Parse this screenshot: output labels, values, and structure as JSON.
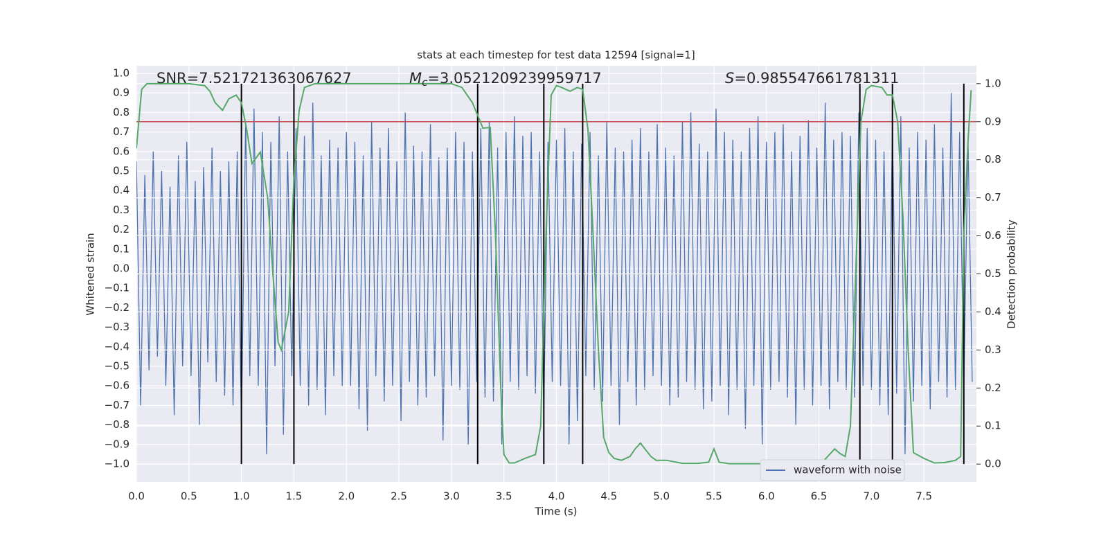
{
  "chart_data": {
    "type": "line",
    "title": "stats at each timestep for test data 12594 [signal=1]",
    "x_label": "Time (s)",
    "y_label": "Whitened strain",
    "y2_label": "Detection probability",
    "annotations": [
      {
        "text": "SNR=7.521721363067627"
      },
      {
        "symbol": "M",
        "subscript": "c",
        "text": "=3.0521209239959717"
      },
      {
        "symbol": "S",
        "text": "=0.985547661781311"
      }
    ],
    "xlim": [
      0,
      8.0
    ],
    "ylim": [
      -1.092,
      1.039
    ],
    "y2lim": [
      -0.047,
      1.047
    ],
    "xticks": [
      {
        "value": 0,
        "label": "0.0"
      },
      {
        "value": 0.5,
        "label": "0.5"
      },
      {
        "value": 1,
        "label": "1.0"
      },
      {
        "value": 1.5,
        "label": "1.5"
      },
      {
        "value": 2,
        "label": "2.0"
      },
      {
        "value": 2.5,
        "label": "2.5"
      },
      {
        "value": 3,
        "label": "3.0"
      },
      {
        "value": 3.5,
        "label": "3.5"
      },
      {
        "value": 4,
        "label": "4.0"
      },
      {
        "value": 4.5,
        "label": "4.5"
      },
      {
        "value": 5,
        "label": "5.0"
      },
      {
        "value": 5.5,
        "label": "5.5"
      },
      {
        "value": 6,
        "label": "6.0"
      },
      {
        "value": 6.5,
        "label": "6.5"
      },
      {
        "value": 7,
        "label": "7.0"
      },
      {
        "value": 7.5,
        "label": "7.5"
      }
    ],
    "yticks": [
      {
        "value": -1,
        "label": "−1.0"
      },
      {
        "value": -0.9,
        "label": "−0.9"
      },
      {
        "value": -0.8,
        "label": "−0.8"
      },
      {
        "value": -0.7,
        "label": "−0.7"
      },
      {
        "value": -0.6,
        "label": "−0.6"
      },
      {
        "value": -0.5,
        "label": "−0.5"
      },
      {
        "value": -0.4,
        "label": "−0.4"
      },
      {
        "value": -0.3,
        "label": "−0.3"
      },
      {
        "value": -0.2,
        "label": "−0.2"
      },
      {
        "value": -0.1,
        "label": "−0.1"
      },
      {
        "value": 0,
        "label": "0.0"
      },
      {
        "value": 0.1,
        "label": "0.1"
      },
      {
        "value": 0.2,
        "label": "0.2"
      },
      {
        "value": 0.3,
        "label": "0.3"
      },
      {
        "value": 0.4,
        "label": "0.4"
      },
      {
        "value": 0.5,
        "label": "0.5"
      },
      {
        "value": 0.6,
        "label": "0.6"
      },
      {
        "value": 0.7,
        "label": "0.7"
      },
      {
        "value": 0.8,
        "label": "0.8"
      },
      {
        "value": 0.9,
        "label": "0.9"
      },
      {
        "value": 1,
        "label": "1.0"
      }
    ],
    "y2ticks": [
      {
        "value": 0,
        "label": "0.0"
      },
      {
        "value": 0.1,
        "label": "0.1"
      },
      {
        "value": 0.2,
        "label": "0.2"
      },
      {
        "value": 0.3,
        "label": "0.3"
      },
      {
        "value": 0.4,
        "label": "0.4"
      },
      {
        "value": 0.5,
        "label": "0.5"
      },
      {
        "value": 0.6,
        "label": "0.6"
      },
      {
        "value": 0.7,
        "label": "0.7"
      },
      {
        "value": 0.8,
        "label": "0.8"
      },
      {
        "value": 0.9,
        "label": "0.9"
      },
      {
        "value": 1,
        "label": "1.0"
      }
    ],
    "grid": true,
    "legend": "lower right",
    "threshold": {
      "value": 0.9,
      "axis": "y2",
      "color": "#c44e52"
    },
    "vlines": {
      "x": [
        1.0,
        1.5,
        3.25,
        3.88,
        4.25,
        6.89,
        7.2,
        7.88
      ],
      "color": "#000000"
    },
    "series": [
      {
        "name": "waveform with noise",
        "color": "#4c72b0",
        "x": [
          0,
          0.04,
          0.08,
          0.12,
          0.16,
          0.2,
          0.24,
          0.28,
          0.32,
          0.36,
          0.4,
          0.44,
          0.48,
          0.52,
          0.56,
          0.6,
          0.64,
          0.68,
          0.72,
          0.76,
          0.8,
          0.84,
          0.88,
          0.92,
          0.96,
          1,
          1.04,
          1.08,
          1.12,
          1.16,
          1.2,
          1.24,
          1.28,
          1.32,
          1.36,
          1.4,
          1.44,
          1.48,
          1.52,
          1.56,
          1.6,
          1.64,
          1.68,
          1.72,
          1.76,
          1.8,
          1.84,
          1.88,
          1.92,
          1.96,
          2,
          2.04,
          2.08,
          2.12,
          2.16,
          2.2,
          2.24,
          2.28,
          2.32,
          2.36,
          2.4,
          2.44,
          2.48,
          2.52,
          2.56,
          2.6,
          2.64,
          2.68,
          2.72,
          2.76,
          2.8,
          2.84,
          2.88,
          2.92,
          2.96,
          3,
          3.04,
          3.08,
          3.12,
          3.16,
          3.2,
          3.24,
          3.28,
          3.32,
          3.36,
          3.4,
          3.44,
          3.48,
          3.52,
          3.56,
          3.6,
          3.64,
          3.68,
          3.72,
          3.76,
          3.8,
          3.84,
          3.88,
          3.92,
          3.96,
          4,
          4.04,
          4.08,
          4.12,
          4.16,
          4.2,
          4.24,
          4.28,
          4.32,
          4.36,
          4.4,
          4.44,
          4.48,
          4.52,
          4.56,
          4.6,
          4.64,
          4.68,
          4.72,
          4.76,
          4.8,
          4.84,
          4.88,
          4.92,
          4.96,
          5,
          5.04,
          5.08,
          5.12,
          5.16,
          5.2,
          5.24,
          5.28,
          5.32,
          5.36,
          5.4,
          5.44,
          5.48,
          5.52,
          5.56,
          5.6,
          5.64,
          5.68,
          5.72,
          5.76,
          5.8,
          5.84,
          5.88,
          5.92,
          5.96,
          6,
          6.04,
          6.08,
          6.12,
          6.16,
          6.2,
          6.24,
          6.28,
          6.32,
          6.36,
          6.4,
          6.44,
          6.48,
          6.52,
          6.56,
          6.6,
          6.64,
          6.68,
          6.72,
          6.76,
          6.8,
          6.84,
          6.88,
          6.92,
          6.96,
          7,
          7.04,
          7.08,
          7.12,
          7.16,
          7.2,
          7.24,
          7.28,
          7.32,
          7.36,
          7.4,
          7.44,
          7.48,
          7.52,
          7.56,
          7.6,
          7.64,
          7.68,
          7.72,
          7.76,
          7.8,
          7.84,
          7.88,
          7.92,
          7.96
        ],
        "values": [
          0.55,
          -0.7,
          0.48,
          -0.52,
          0.6,
          -0.45,
          0.5,
          -0.6,
          0.42,
          -0.75,
          0.58,
          -0.5,
          0.65,
          -0.55,
          0.45,
          -0.8,
          0.52,
          -0.48,
          0.62,
          -0.58,
          0.5,
          -0.65,
          0.55,
          -0.7,
          0.6,
          -0.8,
          0.75,
          -0.55,
          0.82,
          -0.6,
          0.7,
          -0.95,
          0.65,
          -0.5,
          0.78,
          -0.85,
          0.6,
          -0.55,
          0.72,
          -0.6,
          0.68,
          -0.7,
          0.85,
          -0.62,
          0.58,
          -0.75,
          0.66,
          -0.55,
          0.62,
          -0.6,
          0.7,
          -0.6,
          0.65,
          -0.72,
          0.58,
          -0.83,
          0.75,
          -0.55,
          0.62,
          -0.68,
          0.72,
          -0.6,
          0.55,
          -0.78,
          0.8,
          -0.58,
          0.63,
          -0.7,
          0.6,
          -0.66,
          0.74,
          -0.55,
          0.57,
          -0.88,
          0.62,
          -0.6,
          0.7,
          -0.62,
          0.65,
          -0.9,
          0.6,
          -0.58,
          0.72,
          -0.66,
          0.75,
          -0.68,
          0.62,
          -0.9,
          0.7,
          -0.58,
          0.78,
          -0.62,
          0.68,
          -0.55,
          0.7,
          -0.64,
          0.6,
          -0.72,
          0.65,
          -0.58,
          0.66,
          -0.6,
          0.72,
          -0.9,
          0.6,
          -0.78,
          0.64,
          -0.55,
          0.7,
          -0.62,
          0.58,
          -0.68,
          0.75,
          -0.6,
          0.62,
          -0.8,
          0.6,
          -0.58,
          0.66,
          -0.7,
          0.72,
          -0.62,
          0.6,
          -0.55,
          0.74,
          -0.6,
          0.62,
          -0.7,
          0.58,
          -0.66,
          0.75,
          -0.58,
          0.8,
          -0.62,
          0.64,
          -0.72,
          0.6,
          -0.68,
          0.82,
          -0.6,
          0.7,
          -0.75,
          0.66,
          -0.62,
          0.6,
          -0.82,
          0.72,
          -0.6,
          0.78,
          -0.9,
          0.65,
          -0.62,
          0.7,
          -0.58,
          0.74,
          -0.66,
          0.6,
          -0.8,
          0.68,
          -0.62,
          0.76,
          -0.7,
          0.62,
          -0.6,
          0.85,
          -0.72,
          0.66,
          -0.58,
          0.7,
          -0.62,
          0.68,
          -0.66,
          0.8,
          -0.6,
          0.72,
          -0.62,
          0.66,
          -0.7,
          0.6,
          -0.75,
          0.72,
          -0.64,
          0.78,
          -0.95,
          0.62,
          -0.68,
          0.7,
          -0.6,
          0.66,
          -0.72,
          0.74,
          -0.58,
          0.62,
          -0.66,
          0.9,
          -0.62,
          0.7,
          -0.6,
          0.66,
          -0.58
        ]
      },
      {
        "color": "#55a868",
        "axis": "y2",
        "x": [
          0,
          0.05,
          0.1,
          0.5,
          0.65,
          0.7,
          0.75,
          0.82,
          0.88,
          0.95,
          1.0,
          1.05,
          1.1,
          1.18,
          1.25,
          1.3,
          1.35,
          1.38,
          1.45,
          1.5,
          1.55,
          1.6,
          1.7,
          3.0,
          3.1,
          3.2,
          3.3,
          3.37,
          3.42,
          3.47,
          3.5,
          3.55,
          3.6,
          3.7,
          3.8,
          3.85,
          3.9,
          3.95,
          4.0,
          4.05,
          4.13,
          4.2,
          4.25,
          4.3,
          4.35,
          4.4,
          4.45,
          4.5,
          4.55,
          4.62,
          4.7,
          4.75,
          4.8,
          4.9,
          4.95,
          5.05,
          5.2,
          5.35,
          5.45,
          5.5,
          5.55,
          5.65,
          6.0,
          6.5,
          6.55,
          6.65,
          6.7,
          6.75,
          6.8,
          6.85,
          6.9,
          6.95,
          7.0,
          7.1,
          7.15,
          7.2,
          7.25,
          7.3,
          7.35,
          7.4,
          7.5,
          7.6,
          7.7,
          7.8,
          7.85,
          7.88,
          7.92,
          7.95
        ],
        "values": [
          0.83,
          0.985,
          1.0,
          1.0,
          0.995,
          0.98,
          0.95,
          0.93,
          0.96,
          0.97,
          0.95,
          0.88,
          0.79,
          0.82,
          0.7,
          0.5,
          0.32,
          0.3,
          0.4,
          0.75,
          0.93,
          0.99,
          1.0,
          1.0,
          0.99,
          0.95,
          0.883,
          0.885,
          0.6,
          0.2,
          0.025,
          0.003,
          0.003,
          0.015,
          0.025,
          0.1,
          0.6,
          0.97,
          0.995,
          0.99,
          0.98,
          0.99,
          0.985,
          0.88,
          0.6,
          0.3,
          0.07,
          0.03,
          0.015,
          0.01,
          0.02,
          0.04,
          0.055,
          0.02,
          0.01,
          0.01,
          0.002,
          0.002,
          0.005,
          0.04,
          0.005,
          0.001,
          0.001,
          0.003,
          0.01,
          0.04,
          0.028,
          0.02,
          0.1,
          0.5,
          0.9,
          0.985,
          0.995,
          0.99,
          0.97,
          0.97,
          0.9,
          0.65,
          0.3,
          0.03,
          0.015,
          0.003,
          0.004,
          0.01,
          0.02,
          0.6,
          0.85,
          0.983
        ]
      }
    ]
  }
}
